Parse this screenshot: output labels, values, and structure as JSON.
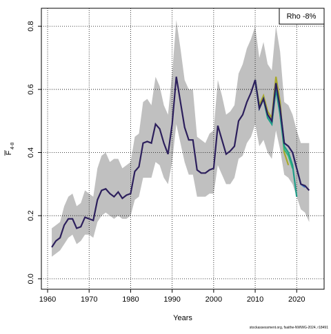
{
  "chart_data": {
    "type": "line",
    "xlabel": "Years",
    "ylabel": "F",
    "ylabel_sub": "4-8",
    "annotation": "Rho -8%",
    "footer": "stockassessment.org, fsaithe-NWWG-2024, r18491",
    "xlim": [
      1958.5,
      2026.6
    ],
    "ylim": [
      -0.033,
      0.857
    ],
    "xticks": [
      1960,
      1970,
      1980,
      1990,
      2000,
      2010,
      2020
    ],
    "yticks": [
      {
        "value": 0,
        "label": "0.0"
      },
      0.2,
      0.4,
      0.6,
      0.8
    ],
    "grid": true,
    "band_color": "#c0c0c0",
    "x": [
      1961,
      1962,
      1963,
      1964,
      1965,
      1966,
      1967,
      1968,
      1969,
      1970,
      1971,
      1972,
      1973,
      1974,
      1975,
      1976,
      1977,
      1978,
      1979,
      1980,
      1981,
      1982,
      1983,
      1984,
      1985,
      1986,
      1987,
      1988,
      1989,
      1990,
      1991,
      1992,
      1993,
      1994,
      1995,
      1996,
      1997,
      1998,
      1999,
      2000,
      2001,
      2002,
      2003,
      2004,
      2005,
      2006,
      2007,
      2008,
      2009,
      2010,
      2011,
      2012,
      2013,
      2014,
      2015,
      2016,
      2017,
      2018,
      2019,
      2020,
      2021,
      2022,
      2023
    ],
    "band_upper": [
      0.16,
      0.17,
      0.18,
      0.23,
      0.26,
      0.27,
      0.23,
      0.24,
      0.28,
      0.27,
      0.26,
      0.35,
      0.39,
      0.4,
      0.37,
      0.38,
      0.38,
      0.35,
      0.36,
      0.37,
      0.45,
      0.46,
      0.56,
      0.57,
      0.55,
      0.64,
      0.61,
      0.55,
      0.52,
      0.65,
      0.82,
      0.73,
      0.63,
      0.6,
      0.6,
      0.45,
      0.44,
      0.43,
      0.46,
      0.47,
      0.63,
      0.58,
      0.52,
      0.53,
      0.55,
      0.65,
      0.68,
      0.73,
      0.76,
      0.8,
      0.7,
      0.75,
      0.68,
      0.66,
      0.8,
      0.72,
      0.56,
      0.55,
      0.52,
      0.47,
      0.43,
      0.43,
      0.43
    ],
    "band_lower": [
      0.07,
      0.08,
      0.09,
      0.11,
      0.13,
      0.14,
      0.11,
      0.12,
      0.14,
      0.14,
      0.13,
      0.18,
      0.2,
      0.21,
      0.2,
      0.19,
      0.2,
      0.19,
      0.19,
      0.2,
      0.25,
      0.26,
      0.32,
      0.32,
      0.32,
      0.37,
      0.36,
      0.32,
      0.3,
      0.37,
      0.49,
      0.43,
      0.37,
      0.33,
      0.33,
      0.26,
      0.26,
      0.26,
      0.27,
      0.27,
      0.36,
      0.33,
      0.3,
      0.3,
      0.32,
      0.38,
      0.39,
      0.43,
      0.45,
      0.49,
      0.42,
      0.44,
      0.4,
      0.38,
      0.47,
      0.41,
      0.33,
      0.32,
      0.3,
      0.26,
      0.22,
      0.21,
      0.18
    ],
    "series": [
      {
        "color": "#2c1f5c",
        "values": [
          0.1,
          0.12,
          0.13,
          0.17,
          0.19,
          0.19,
          0.16,
          0.165,
          0.195,
          0.19,
          0.185,
          0.25,
          0.28,
          0.285,
          0.27,
          0.26,
          0.275,
          0.255,
          0.265,
          0.27,
          0.34,
          0.355,
          0.43,
          0.435,
          0.43,
          0.49,
          0.475,
          0.43,
          0.395,
          0.49,
          0.64,
          0.56,
          0.48,
          0.44,
          0.44,
          0.345,
          0.335,
          0.335,
          0.345,
          0.35,
          0.485,
          0.44,
          0.395,
          0.405,
          0.42,
          0.5,
          0.52,
          0.56,
          0.59,
          0.63,
          0.54,
          0.57,
          0.52,
          0.5,
          0.62,
          0.54,
          0.43,
          0.42,
          0.4,
          0.35,
          0.3,
          0.295,
          0.28
        ]
      },
      {
        "color": "#3a6fc4",
        "x": [
          2010,
          2011,
          2012,
          2013,
          2014,
          2015,
          2016,
          2017,
          2018,
          2019,
          2020,
          2021,
          2022
        ],
        "values": [
          0.63,
          0.54,
          0.57,
          0.52,
          0.5,
          0.62,
          0.54,
          0.43,
          0.42,
          0.4,
          0.35,
          0.3,
          0.29
        ]
      },
      {
        "color": "#1f9e89",
        "x": [
          2010,
          2011,
          2012,
          2013,
          2014,
          2015,
          2016,
          2017,
          2018,
          2019,
          2020
        ],
        "values": [
          0.63,
          0.54,
          0.57,
          0.51,
          0.49,
          0.6,
          0.52,
          0.42,
          0.4,
          0.36,
          0.26
        ]
      },
      {
        "color": "#35b779",
        "x": [
          2010,
          2011,
          2012,
          2013,
          2014,
          2015,
          2016,
          2017,
          2018,
          2019
        ],
        "values": [
          0.63,
          0.54,
          0.57,
          0.51,
          0.49,
          0.61,
          0.52,
          0.41,
          0.39,
          0.35
        ]
      },
      {
        "color": "#a8a82a",
        "x": [
          2010,
          2011,
          2012,
          2013,
          2014,
          2015,
          2016,
          2017,
          2018
        ],
        "values": [
          0.63,
          0.55,
          0.58,
          0.53,
          0.51,
          0.64,
          0.56,
          0.4,
          0.36
        ]
      }
    ]
  }
}
